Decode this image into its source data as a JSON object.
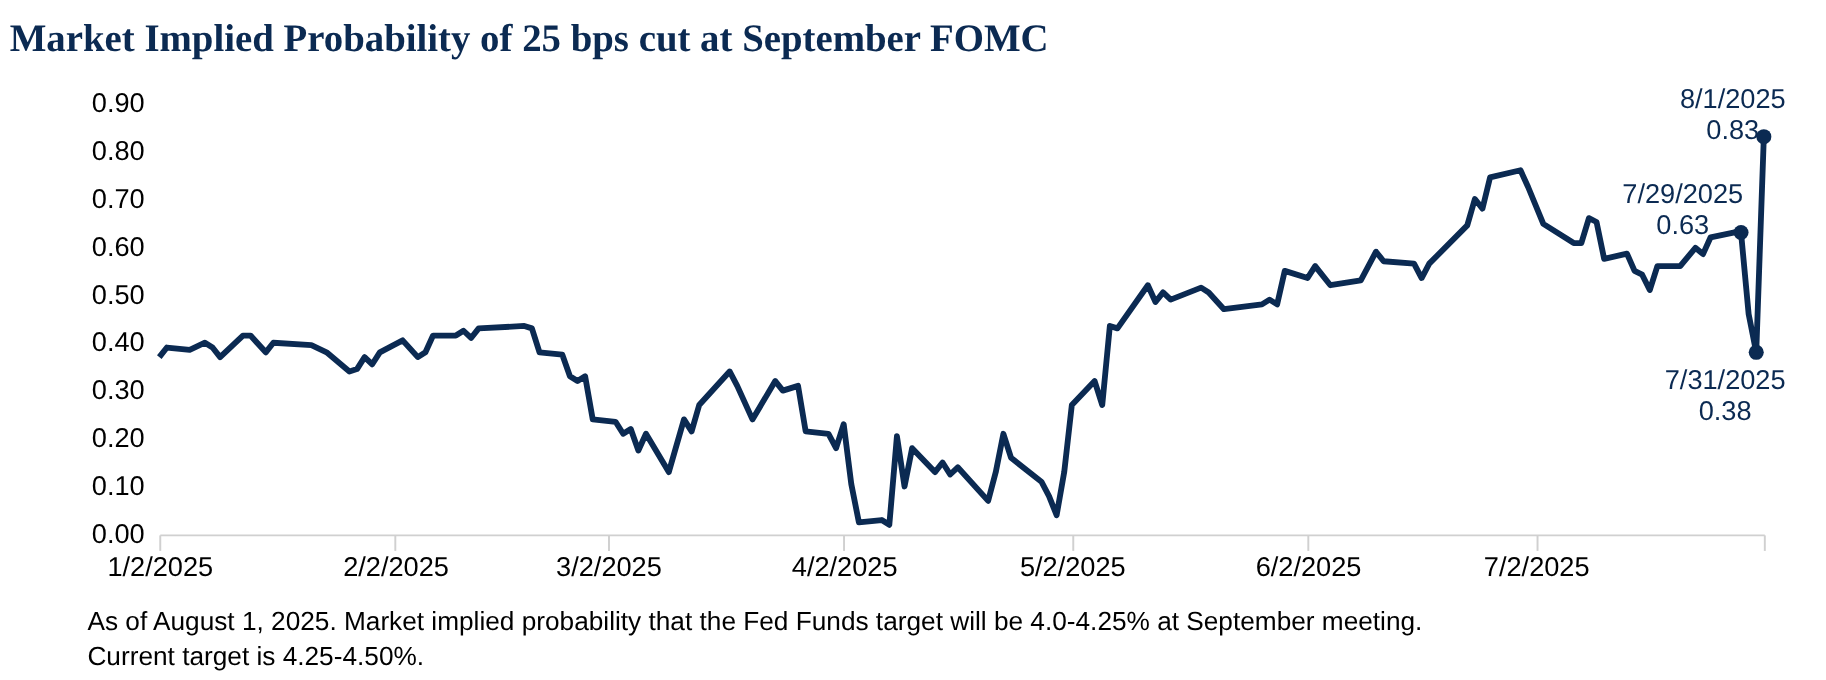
{
  "chart_data": {
    "type": "line",
    "title": "Market Implied Probability of 25 bps cut at September FOMC",
    "xlim": [
      "2025-01-02",
      "2025-08-01"
    ],
    "xticks": [
      {
        "value": "2025-01-02",
        "label": "1/2/2025"
      },
      {
        "value": "2025-02-02",
        "label": "2/2/2025"
      },
      {
        "value": "2025-03-02",
        "label": "3/2/2025"
      },
      {
        "value": "2025-04-02",
        "label": "4/2/2025"
      },
      {
        "value": "2025-05-02",
        "label": "5/2/2025"
      },
      {
        "value": "2025-06-02",
        "label": "6/2/2025"
      },
      {
        "value": "2025-07-02",
        "label": "7/2/2025"
      },
      {
        "value": "2025-08-01",
        "label": null
      }
    ],
    "ylim": [
      0,
      0.9
    ],
    "yticks": [
      {
        "value": 0,
        "label": "0.00"
      },
      {
        "value": 0.1,
        "label": "0.10"
      },
      {
        "value": 0.2,
        "label": "0.20"
      },
      {
        "value": 0.3,
        "label": "0.30"
      },
      {
        "value": 0.4,
        "label": "0.40"
      },
      {
        "value": 0.5,
        "label": "0.50"
      },
      {
        "value": 0.6,
        "label": "0.60"
      },
      {
        "value": 0.7,
        "label": "0.70"
      },
      {
        "value": 0.8,
        "label": "0.80"
      },
      {
        "value": 0.9,
        "label": "0.90"
      }
    ],
    "grid": false,
    "line_style": "solid",
    "series": [
      {
        "color": "#0b2a52",
        "marker": "none",
        "x": [
          "2025-01-02",
          "2025-01-03",
          "2025-01-06",
          "2025-01-08",
          "2025-01-09",
          "2025-01-10",
          "2025-01-13",
          "2025-01-14",
          "2025-01-16",
          "2025-01-17",
          "2025-01-22",
          "2025-01-24",
          "2025-01-27",
          "2025-01-28",
          "2025-01-29",
          "2025-01-30",
          "2025-01-31",
          "2025-02-03",
          "2025-02-05",
          "2025-02-06",
          "2025-02-07",
          "2025-02-10",
          "2025-02-11",
          "2025-02-12",
          "2025-02-13",
          "2025-02-19",
          "2025-02-20",
          "2025-02-21",
          "2025-02-24",
          "2025-02-25",
          "2025-02-26",
          "2025-02-27",
          "2025-02-28",
          "2025-03-03",
          "2025-03-04",
          "2025-03-05",
          "2025-03-06",
          "2025-03-07",
          "2025-03-10",
          "2025-03-12",
          "2025-03-13",
          "2025-03-14",
          "2025-03-18",
          "2025-03-19",
          "2025-03-21",
          "2025-03-24",
          "2025-03-25",
          "2025-03-27",
          "2025-03-28",
          "2025-03-31",
          "2025-04-01",
          "2025-04-02",
          "2025-04-03",
          "2025-04-04",
          "2025-04-07",
          "2025-04-08",
          "2025-04-09",
          "2025-04-10",
          "2025-04-11",
          "2025-04-14",
          "2025-04-15",
          "2025-04-16",
          "2025-04-17",
          "2025-04-21",
          "2025-04-22",
          "2025-04-23",
          "2025-04-24",
          "2025-04-28",
          "2025-04-29",
          "2025-04-30",
          "2025-05-01",
          "2025-05-02",
          "2025-05-05",
          "2025-05-06",
          "2025-05-07",
          "2025-05-08",
          "2025-05-12",
          "2025-05-13",
          "2025-05-14",
          "2025-05-15",
          "2025-05-19",
          "2025-05-20",
          "2025-05-22",
          "2025-05-27",
          "2025-05-28",
          "2025-05-29",
          "2025-05-30",
          "2025-06-02",
          "2025-06-03",
          "2025-06-05",
          "2025-06-09",
          "2025-06-11",
          "2025-06-12",
          "2025-06-16",
          "2025-06-17",
          "2025-06-18",
          "2025-06-23",
          "2025-06-24",
          "2025-06-25",
          "2025-06-26",
          "2025-06-30",
          "2025-07-01",
          "2025-07-03",
          "2025-07-07",
          "2025-07-08",
          "2025-07-09",
          "2025-07-10",
          "2025-07-11",
          "2025-07-14",
          "2025-07-15",
          "2025-07-16",
          "2025-07-17",
          "2025-07-18",
          "2025-07-21",
          "2025-07-23",
          "2025-07-24",
          "2025-07-25",
          "2025-07-28",
          "2025-07-29",
          "2025-07-30",
          "2025-07-31",
          "2025-08-01"
        ],
        "values": [
          0.37,
          0.39,
          0.385,
          0.4,
          0.39,
          0.37,
          0.415,
          0.415,
          0.38,
          0.4,
          0.395,
          0.38,
          0.34,
          0.345,
          0.37,
          0.355,
          0.38,
          0.405,
          0.37,
          0.38,
          0.415,
          0.415,
          0.425,
          0.41,
          0.43,
          0.435,
          0.43,
          0.38,
          0.375,
          0.33,
          0.32,
          0.33,
          0.24,
          0.235,
          0.21,
          0.22,
          0.175,
          0.21,
          0.13,
          0.24,
          0.215,
          0.27,
          0.34,
          0.31,
          0.24,
          0.32,
          0.3,
          0.31,
          0.215,
          0.21,
          0.18,
          0.23,
          0.105,
          0.025,
          0.03,
          0.02,
          0.205,
          0.1,
          0.18,
          0.13,
          0.15,
          0.125,
          0.14,
          0.07,
          0.13,
          0.21,
          0.16,
          0.11,
          0.08,
          0.04,
          0.13,
          0.27,
          0.32,
          0.27,
          0.435,
          0.43,
          0.52,
          0.485,
          0.505,
          0.49,
          0.515,
          0.505,
          0.47,
          0.48,
          0.49,
          0.48,
          0.55,
          0.535,
          0.56,
          0.52,
          0.53,
          0.59,
          0.57,
          0.565,
          0.535,
          0.565,
          0.645,
          0.7,
          0.68,
          0.745,
          0.76,
          0.725,
          0.648,
          0.608,
          0.608,
          0.66,
          0.652,
          0.575,
          0.586,
          0.55,
          0.542,
          0.51,
          0.56,
          0.56,
          0.598,
          0.585,
          0.62,
          0.63,
          0.63,
          0.46,
          0.38,
          0.83
        ]
      },
      {
        "type": "scatter",
        "color": "#0b2a52",
        "marker": "circle",
        "x": [
          "2025-07-29",
          "2025-07-31",
          "2025-08-01"
        ],
        "values": [
          0.63,
          0.38,
          0.83
        ]
      }
    ],
    "annotations": [
      {
        "text": "7/29/2025\n0.63",
        "x": "2025-07-29",
        "y": 0.63
      },
      {
        "text": "7/31/2025\n0.38",
        "x": "2025-07-31",
        "y": 0.38
      },
      {
        "text": "8/1/2025\n0.83",
        "x": "2025-08-01",
        "y": 0.83
      },
      "As of August 1, 2025. Market implied probability that the Fed Funds target will be 4.0-4.25% at September meeting. Current target is 4.25-4.50%."
    ]
  }
}
